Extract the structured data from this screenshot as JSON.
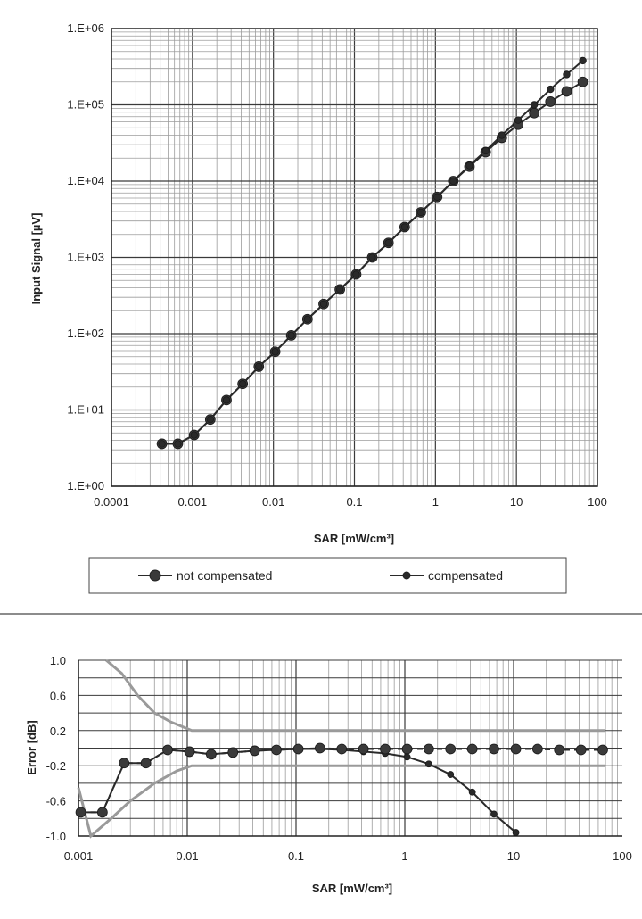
{
  "chart_data": [
    {
      "type": "line",
      "xscale": "log",
      "yscale": "log",
      "xlabel": "SAR [mW/cm³]",
      "ylabel": "Input Signal [µV]",
      "xlim": [
        0.0001,
        100
      ],
      "ylim": [
        1,
        1000000
      ],
      "xticks": [
        "0.0001",
        "0.001",
        "0.01",
        "0.1",
        "1",
        "10",
        "100"
      ],
      "yticks": [
        "1.E+00",
        "1.E+01",
        "1.E+02",
        "1.E+03",
        "1.E+04",
        "1.E+05",
        "1.E+06"
      ],
      "grid": true,
      "legend_position": "bottom",
      "series": [
        {
          "name": "not compensated",
          "x": [
            0.00042,
            0.00066,
            0.00105,
            0.00166,
            0.00263,
            0.00417,
            0.0066,
            0.0105,
            0.0166,
            0.0263,
            0.0417,
            0.066,
            0.105,
            0.166,
            0.263,
            0.417,
            0.66,
            1.05,
            1.66,
            2.63,
            4.17,
            6.6,
            10.5,
            16.6,
            26.3,
            41.7,
            66
          ],
          "y": [
            3.6,
            3.6,
            4.7,
            7.5,
            13.5,
            22,
            37,
            58,
            95,
            155,
            245,
            380,
            600,
            1000,
            1550,
            2500,
            3900,
            6200,
            10000,
            15500,
            24000,
            37000,
            55000,
            78000,
            110000,
            150000,
            200000
          ]
        },
        {
          "name": "compensated",
          "x": [
            0.00042,
            0.00066,
            0.00105,
            0.00166,
            0.00263,
            0.00417,
            0.0066,
            0.0105,
            0.0166,
            0.0263,
            0.0417,
            0.066,
            0.105,
            0.166,
            0.263,
            0.417,
            0.66,
            1.05,
            1.66,
            2.63,
            4.17,
            6.6,
            10.5,
            16.6,
            26.3,
            41.7,
            66
          ],
          "y": [
            3.6,
            3.6,
            4.7,
            7.5,
            13.5,
            22,
            37,
            58,
            95,
            155,
            245,
            380,
            600,
            1000,
            1550,
            2500,
            3900,
            6200,
            10000,
            16000,
            25000,
            40000,
            63000,
            100000,
            160000,
            250000,
            380000
          ]
        }
      ]
    },
    {
      "type": "line",
      "xscale": "log",
      "xlabel": "SAR [mW/cm³]",
      "ylabel": "Error [dB]",
      "xlim": [
        0.001,
        100
      ],
      "ylim": [
        -1.0,
        1.0
      ],
      "xticks": [
        "0.001",
        "0.01",
        "0.1",
        "1",
        "10",
        "100"
      ],
      "yticks": [
        "1.0",
        "0.6",
        "0.2",
        "-0.2",
        "-0.6",
        "-1.0"
      ],
      "grid": true,
      "series": [
        {
          "name": "not compensated",
          "x": [
            0.00105,
            0.00166,
            0.00263,
            0.00417,
            0.0066,
            0.0105,
            0.0166,
            0.0263,
            0.0417,
            0.066,
            0.105,
            0.166,
            0.263,
            0.417,
            0.66,
            1.05,
            1.66,
            2.63,
            4.17,
            6.6,
            10.5
          ],
          "y": [
            -0.73,
            -0.73,
            -0.17,
            -0.17,
            -0.02,
            -0.04,
            -0.07,
            -0.05,
            -0.03,
            -0.02,
            -0.01,
            -0.01,
            -0.02,
            -0.04,
            -0.06,
            -0.1,
            -0.18,
            -0.3,
            -0.5,
            -0.75,
            -0.96
          ]
        },
        {
          "name": "compensated",
          "x": [
            0.00105,
            0.00166,
            0.00263,
            0.00417,
            0.0066,
            0.0105,
            0.0166,
            0.0263,
            0.0417,
            0.066,
            0.105,
            0.166,
            0.263,
            0.417,
            0.66,
            1.05,
            1.66,
            2.63,
            4.17,
            6.6,
            10.5,
            16.6,
            26.3,
            41.7,
            66
          ],
          "y": [
            -0.73,
            -0.73,
            -0.17,
            -0.17,
            -0.02,
            -0.04,
            -0.07,
            -0.05,
            -0.03,
            -0.02,
            -0.01,
            0.0,
            -0.01,
            -0.01,
            -0.01,
            -0.01,
            -0.01,
            -0.01,
            -0.01,
            -0.01,
            -0.01,
            -0.01,
            -0.02,
            -0.02,
            -0.02
          ]
        },
        {
          "role": "upper limit",
          "x": [
            0.0018,
            0.0025,
            0.0035,
            0.005,
            0.007,
            0.011,
            0.02,
            0.1,
            1,
            10,
            70
          ],
          "y": [
            1.0,
            0.85,
            0.6,
            0.4,
            0.3,
            0.2,
            0.2,
            0.2,
            0.2,
            0.2,
            0.2
          ]
        },
        {
          "role": "lower limit",
          "x": [
            0.001,
            0.0013,
            0.002,
            0.003,
            0.005,
            0.008,
            0.011,
            0.02,
            0.1,
            1,
            10,
            70
          ],
          "y": [
            -0.45,
            -1.0,
            -0.8,
            -0.6,
            -0.4,
            -0.26,
            -0.2,
            -0.2,
            -0.2,
            -0.2,
            -0.2,
            -0.2
          ]
        }
      ]
    }
  ],
  "colors": {
    "series": "#2a2a2a",
    "marker_not_compensated": "#3a3a3a",
    "marker_compensated": "#2a2a2a",
    "limit_lines": "#9a9a9a",
    "grid_major": "#3a3a3a",
    "grid_minor": "#9c9c9c"
  }
}
